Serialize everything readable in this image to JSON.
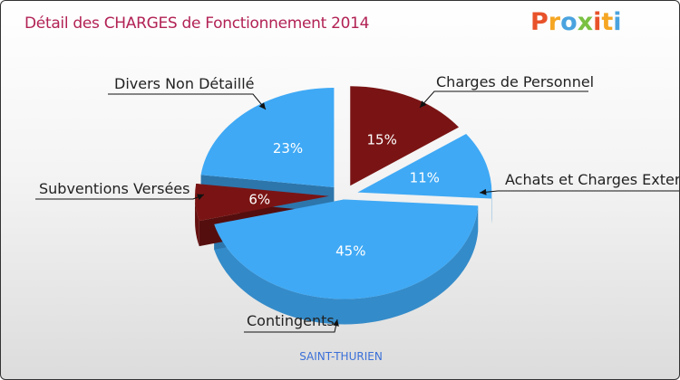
{
  "header": {
    "title": "Détail des CHARGES de Fonctionnement 2014",
    "logo_letters": [
      "P",
      "r",
      "o",
      "x",
      "i",
      "t",
      "i"
    ],
    "logo_colors": [
      "#e8522a",
      "#f5a623",
      "#4aa3df",
      "#7ac143",
      "#e8522a",
      "#f5a623",
      "#4aa3df"
    ]
  },
  "chart_data": {
    "type": "pie",
    "title": "Détail des CHARGES de Fonctionnement 2014",
    "subtitle": "SAINT-THURIEN",
    "slices": [
      {
        "label": "Charges de Personnel",
        "value": 15,
        "pct_label": "15%",
        "color": "#7a1414"
      },
      {
        "label": "Achats et Charges Externes",
        "value": 11,
        "pct_label": "11%",
        "color": "#3fa9f5"
      },
      {
        "label": "Contingents",
        "value": 45,
        "pct_label": "45%",
        "color": "#3fa9f5"
      },
      {
        "label": "Subventions Versées",
        "value": 6,
        "pct_label": "6%",
        "color": "#7a1414"
      },
      {
        "label": "Divers Non Détaillé",
        "value": 23,
        "pct_label": "23%",
        "color": "#3fa9f5"
      }
    ]
  },
  "footer": {
    "commune": "SAINT-THURIEN"
  }
}
